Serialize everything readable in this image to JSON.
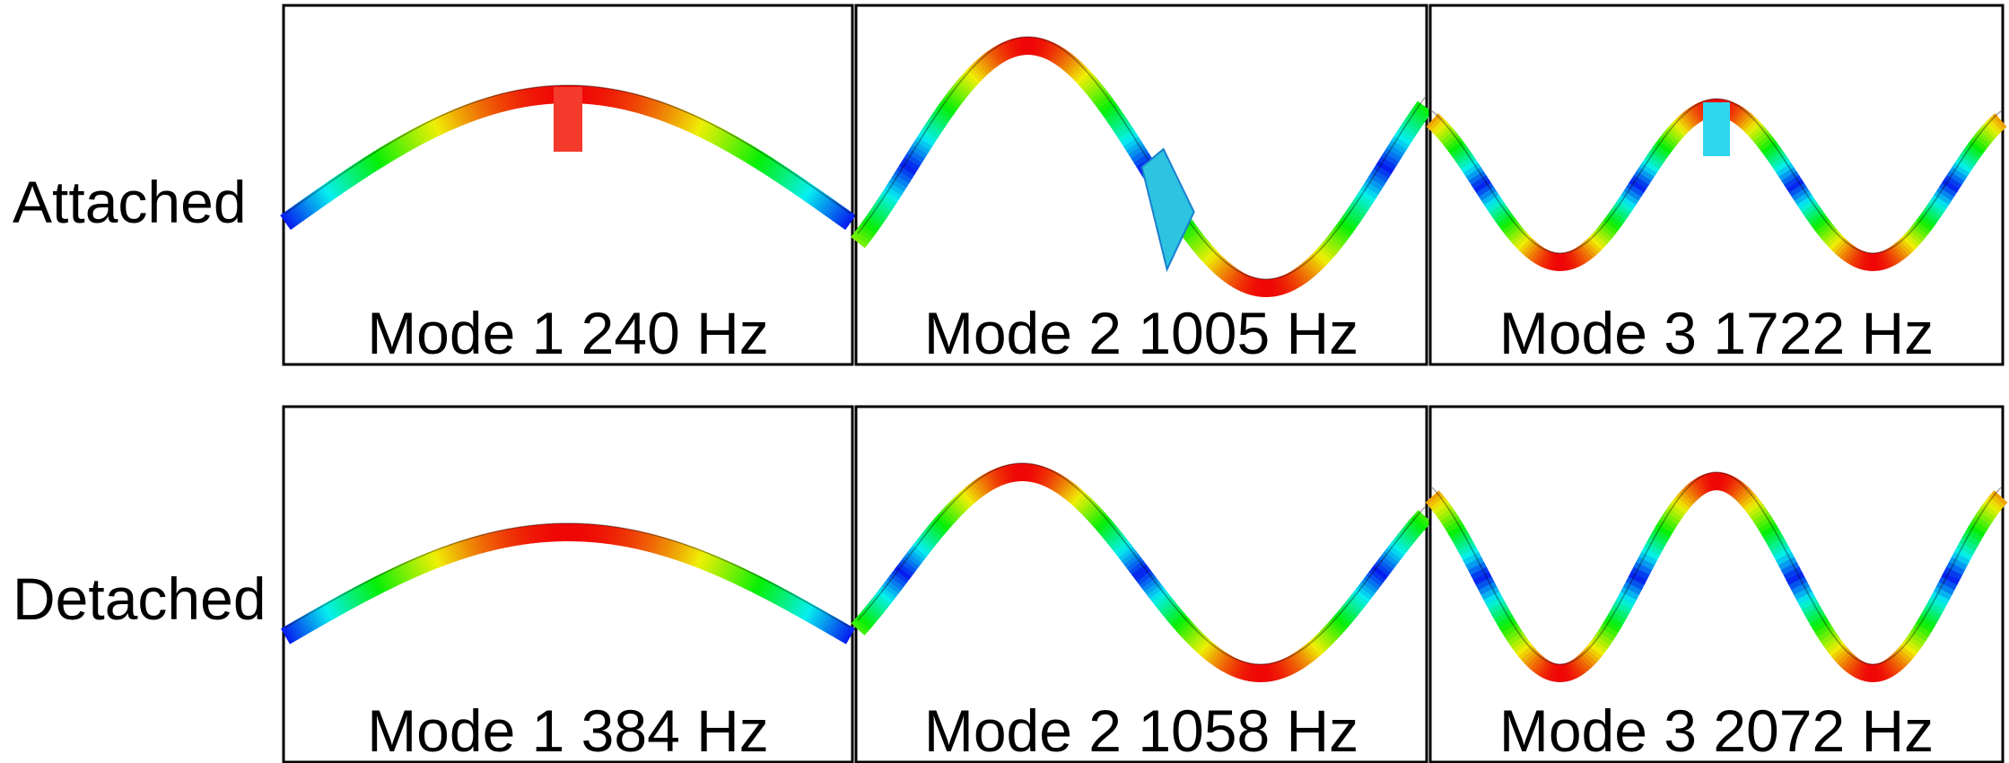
{
  "row_labels": [
    "Attached",
    "Detached"
  ],
  "panels": [
    [
      "Mode 1 240 Hz",
      "Mode 2 1005 Hz",
      "Mode 3 1722 Hz"
    ],
    [
      "Mode 1 384 Hz",
      "Mode 2 1058 Hz",
      "Mode 3 2072 Hz"
    ]
  ]
}
